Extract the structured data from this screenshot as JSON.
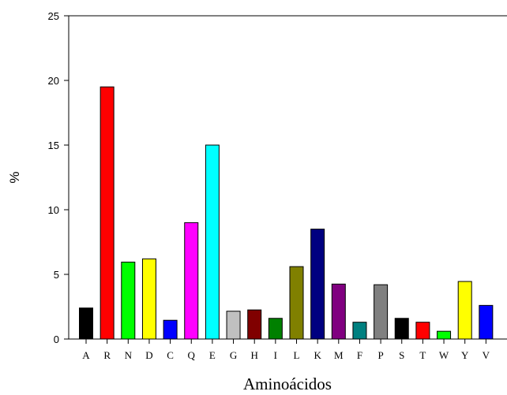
{
  "chart_data": {
    "type": "bar",
    "title": "",
    "xlabel": "Aminoácidos",
    "ylabel": "%",
    "ylim": [
      0,
      25
    ],
    "yticks": [
      0,
      5,
      10,
      15,
      20,
      25
    ],
    "grid": false,
    "categories": [
      "A",
      "R",
      "N",
      "D",
      "C",
      "Q",
      "E",
      "G",
      "H",
      "I",
      "L",
      "K",
      "M",
      "F",
      "P",
      "S",
      "T",
      "W",
      "Y",
      "V"
    ],
    "values": [
      2.4,
      19.5,
      5.95,
      6.2,
      1.45,
      9.0,
      15.0,
      2.15,
      2.25,
      1.6,
      5.6,
      8.5,
      4.25,
      1.3,
      4.2,
      1.6,
      1.3,
      0.6,
      4.45,
      2.6
    ],
    "colors": [
      "#000000",
      "#ff0000",
      "#00ff00",
      "#ffff00",
      "#0000ff",
      "#ff00ff",
      "#00ffff",
      "#c0c0c0",
      "#800000",
      "#008000",
      "#808000",
      "#000080",
      "#800080",
      "#008080",
      "#808080",
      "#000000",
      "#ff0000",
      "#00ff00",
      "#ffff00",
      "#0000ff"
    ]
  }
}
